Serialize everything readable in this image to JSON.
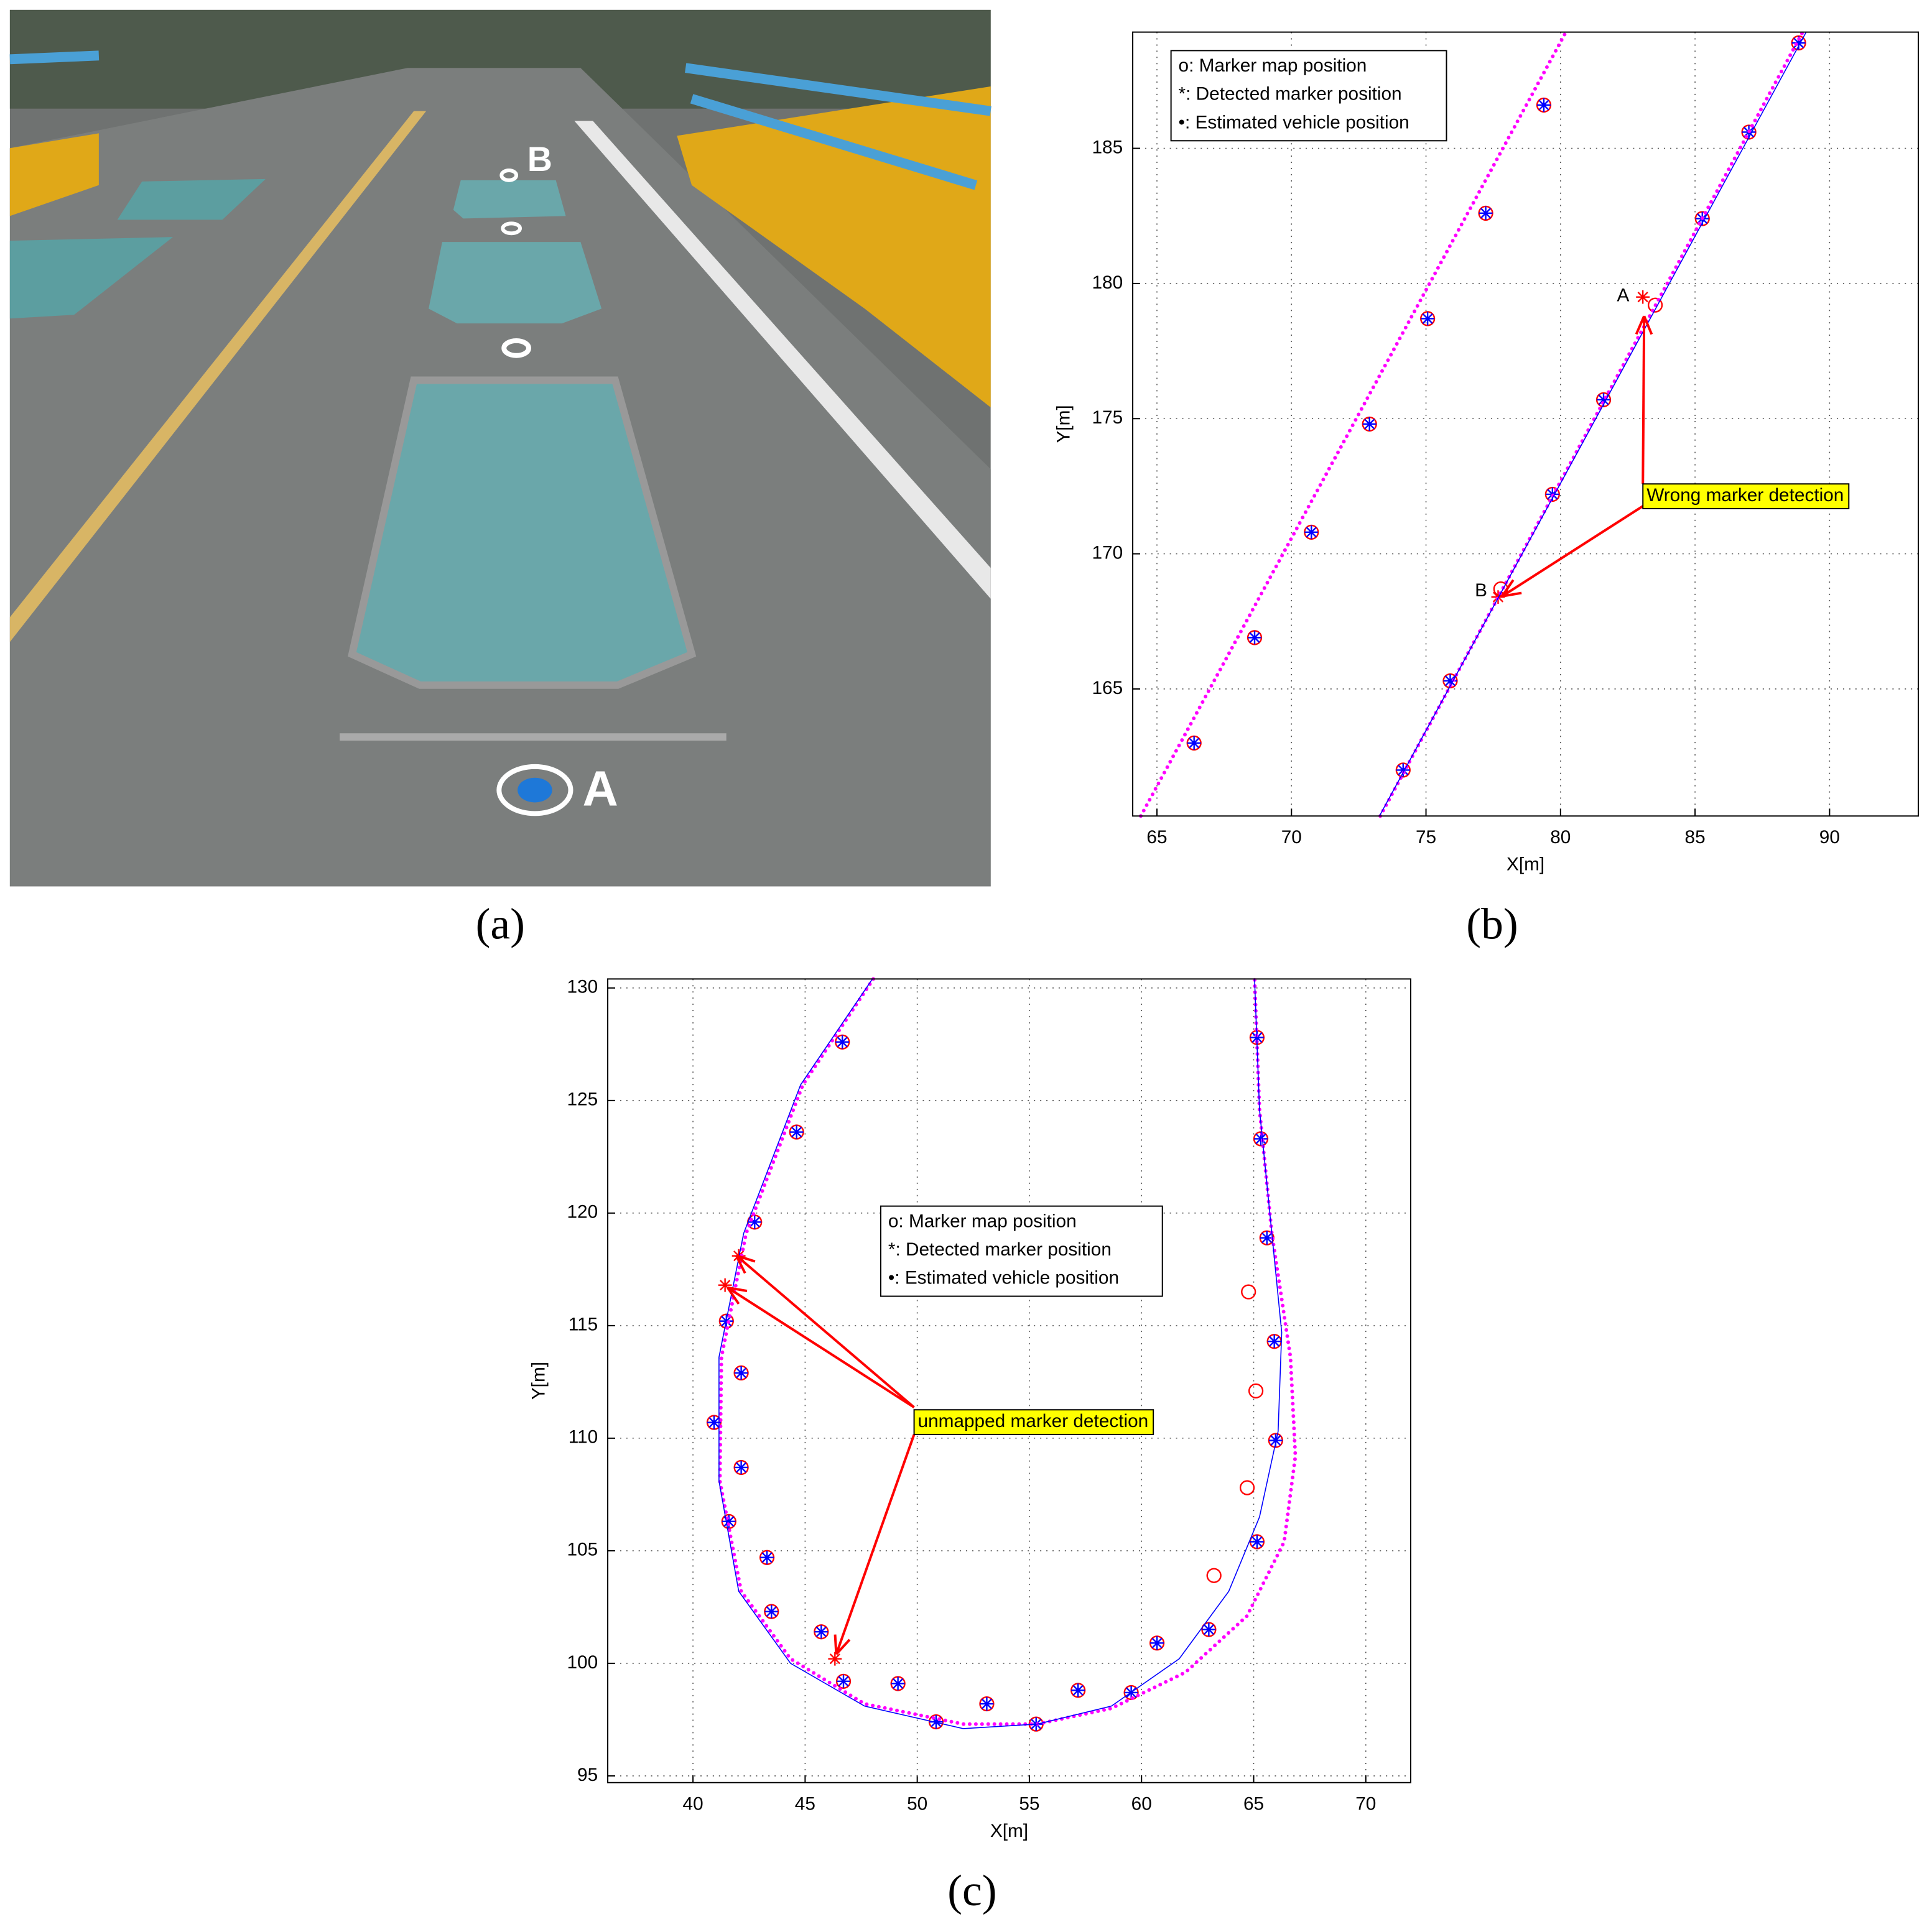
{
  "panels": [
    "(a)",
    "(b)",
    "(c)"
  ],
  "photo": {
    "labels": [
      "A",
      "B"
    ]
  },
  "chart_data": [
    {
      "type": "scatter",
      "xlabel": "X[m]",
      "ylabel": "Y[m]",
      "xlim": [
        64.1,
        93.3
      ],
      "ylim": [
        160.3,
        189.3
      ],
      "xticks": [
        65,
        70,
        75,
        80,
        85,
        90
      ],
      "yticks": [
        165,
        170,
        175,
        180,
        185
      ],
      "grid": true,
      "legend": "upper left",
      "series": [
        {
          "name": "o: Marker map position",
          "marker": "circle",
          "color": "#ff0000",
          "x": [
            66.38,
            68.63,
            70.74,
            72.9,
            75.06,
            77.22,
            79.38,
            74.15,
            75.9,
            77.78,
            79.7,
            81.6,
            83.52,
            85.27,
            87.0,
            88.85
          ],
          "values": [
            163.0,
            166.9,
            170.8,
            174.8,
            178.7,
            182.6,
            186.6,
            162.0,
            165.3,
            168.7,
            172.2,
            175.7,
            179.2,
            182.4,
            185.6,
            188.9
          ]
        },
        {
          "name": "*: Detected marker position",
          "marker": "star",
          "color": "#0000ff",
          "x": [
            66.38,
            68.63,
            70.74,
            72.9,
            75.06,
            77.22,
            79.38,
            74.15,
            75.9,
            79.7,
            81.6,
            85.27,
            87.0,
            88.85
          ],
          "values": [
            163.0,
            166.9,
            170.8,
            174.8,
            178.7,
            182.6,
            186.6,
            162.0,
            165.3,
            172.2,
            175.7,
            182.4,
            185.6,
            188.9
          ]
        },
        {
          "marker": "star",
          "color": "#ff0000",
          "x": [
            83.06,
            77.68
          ],
          "values": [
            179.5,
            168.4
          ]
        },
        {
          "name": "•: Estimated vehicle position",
          "marker": "dots",
          "color": "#ff00ff",
          "x": [
            64.4,
            72.3,
            80.2,
            null,
            73.3,
            81.15,
            89.0
          ],
          "values": [
            160.3,
            174.8,
            189.3,
            null,
            160.3,
            174.8,
            189.3
          ]
        },
        {
          "marker": "line",
          "color": "#0000ff",
          "x": [
            73.27,
            89.13
          ],
          "values": [
            160.3,
            189.3
          ]
        }
      ],
      "annotations": [
        "Wrong marker detection",
        "A",
        "B"
      ]
    },
    {
      "type": "scatter",
      "xlabel": "X[m]",
      "ylabel": "Y[m]",
      "xlim": [
        36.2,
        72.0
      ],
      "ylim": [
        94.7,
        130.4
      ],
      "xticks": [
        40,
        45,
        50,
        55,
        60,
        65,
        70
      ],
      "yticks": [
        95,
        100,
        105,
        110,
        115,
        120,
        125,
        130
      ],
      "grid": true,
      "legend": "upper center",
      "series": [
        {
          "name": "o: Marker map position",
          "marker": "circle",
          "color": "#ff0000",
          "x": [
            46.66,
            44.62,
            42.75,
            41.49,
            42.15,
            40.94,
            42.15,
            41.6,
            43.3,
            43.5,
            45.72,
            46.71,
            49.14,
            50.84,
            53.1,
            55.3,
            57.17,
            59.54,
            60.69,
            63.0,
            65.15,
            65.98,
            65.92,
            65.59,
            65.32,
            65.15,
            64.77,
            65.1,
            64.71,
            63.23
          ],
          "values": [
            127.6,
            123.6,
            119.6,
            115.2,
            112.9,
            110.7,
            108.7,
            106.3,
            104.7,
            102.3,
            101.4,
            99.2,
            99.1,
            97.4,
            98.2,
            97.3,
            98.8,
            98.7,
            100.9,
            101.5,
            105.4,
            109.9,
            114.3,
            118.9,
            123.3,
            127.8,
            116.5,
            112.1,
            107.8,
            103.9
          ]
        },
        {
          "name": "*: Detected marker position",
          "marker": "star",
          "color": "#0000ff",
          "x": [
            46.66,
            44.62,
            42.75,
            41.49,
            42.15,
            40.94,
            42.15,
            41.6,
            43.3,
            43.5,
            45.72,
            46.71,
            49.14,
            50.84,
            53.1,
            55.3,
            57.17,
            59.54,
            60.69,
            63.0,
            65.15,
            65.98,
            65.92,
            65.59,
            65.32,
            65.15
          ],
          "values": [
            127.6,
            123.6,
            119.6,
            115.2,
            112.9,
            110.7,
            108.7,
            106.3,
            104.7,
            102.3,
            101.4,
            99.2,
            99.1,
            97.4,
            98.2,
            97.3,
            98.8,
            98.7,
            100.9,
            101.5,
            105.4,
            109.9,
            114.3,
            118.9,
            123.3,
            127.8
          ]
        },
        {
          "marker": "star",
          "color": "#ff0000",
          "x": [
            42.04,
            41.43,
            46.33
          ],
          "values": [
            118.1,
            116.8,
            100.2
          ]
        },
        {
          "name": "•: Estimated vehicle position",
          "marker": "dots",
          "color": "#ff00ff",
          "x": [
            48.04,
            44.9,
            42.37,
            41.27,
            41.2,
            42.15,
            44.35,
            47.65,
            52.05,
            55.35,
            58.66,
            61.96,
            64.7,
            66.36,
            66.86,
            66.64,
            65.81,
            65.26,
            65.04
          ],
          "values": [
            130.4,
            125.7,
            119.1,
            113.6,
            108.1,
            103.2,
            100.2,
            98.2,
            97.3,
            97.3,
            98.0,
            99.6,
            102.1,
            105.4,
            109.2,
            113.6,
            119.1,
            124.6,
            130.4
          ]
        },
        {
          "marker": "line",
          "color": "#0000ff",
          "x": [
            48.0,
            44.8,
            42.26,
            41.16,
            41.16,
            42.04,
            44.35,
            47.65,
            52.05,
            55.35,
            58.66,
            61.68,
            63.89,
            65.26,
            66.09,
            66.25,
            65.81,
            65.26,
            65.04
          ],
          "values": [
            130.4,
            125.7,
            119.1,
            113.6,
            108.1,
            103.2,
            100.0,
            98.1,
            97.1,
            97.3,
            98.1,
            100.2,
            103.2,
            106.5,
            110.3,
            114.7,
            119.1,
            124.6,
            130.4
          ]
        }
      ],
      "annotations": [
        "unmapped marker detection"
      ]
    }
  ]
}
